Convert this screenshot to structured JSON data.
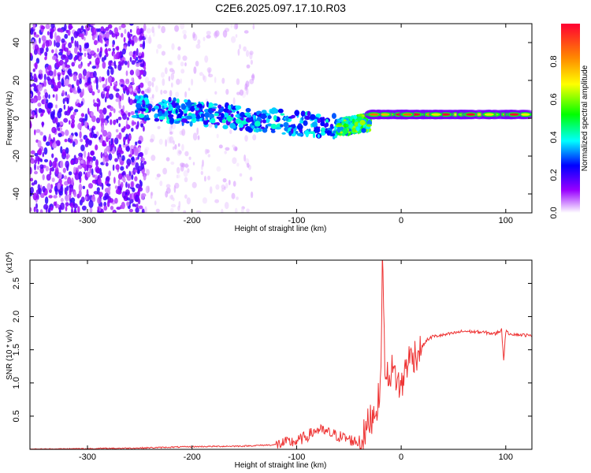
{
  "figure": {
    "title": "C2E6.2025.097.17.10.R03"
  },
  "chart_data": [
    {
      "type": "heatmap",
      "title": "C2E6.2025.097.17.10.R03",
      "xlabel": "Height of straight line (km)",
      "ylabel": "Frequency (Hz)",
      "xlim": [
        -355,
        125
      ],
      "ylim": [
        -50,
        50
      ],
      "xticks": [
        -300,
        -200,
        -100,
        0,
        100
      ],
      "yticks": [
        -40,
        -20,
        0,
        20,
        40
      ],
      "colorbar": {
        "label": "Normalized spectral amplitude",
        "range": [
          0.0,
          1.0
        ],
        "ticks": [
          0.0,
          0.2,
          0.4,
          0.6,
          0.8
        ],
        "colormap": [
          "#ffffff",
          "#9900ff",
          "#0000ff",
          "#00ffff",
          "#00ff00",
          "#ffff00",
          "#ff8800",
          "#ff0033"
        ]
      },
      "regions": [
        {
          "x": [
            -355,
            -245
          ],
          "freq": [
            -50,
            50
          ],
          "amplitude": 0.12
        },
        {
          "x": [
            -245,
            -140
          ],
          "freq": [
            -50,
            50
          ],
          "amplitude": 0.03
        },
        {
          "x": [
            -255,
            -60
          ],
          "freq_center": [
            6,
            -5
          ],
          "freq_halfwidth": 6,
          "amplitude": 0.3
        },
        {
          "x": [
            -60,
            -30
          ],
          "freq_center": [
            -5,
            -2
          ],
          "freq_halfwidth": 4,
          "amplitude": 0.45
        },
        {
          "x": [
            -30,
            125
          ],
          "freq_center": [
            2,
            2
          ],
          "freq_halfwidth": 2,
          "amplitude": 0.95
        }
      ]
    },
    {
      "type": "line",
      "xlabel": "Height of straight line (km)",
      "ylabel": "SNR (10 * v/v)",
      "y_scale_note": "(x10^4)",
      "xlim": [
        -355,
        125
      ],
      "ylim": [
        0,
        2.85
      ],
      "xticks": [
        -300,
        -200,
        -100,
        0,
        100
      ],
      "yticks": [
        0.5,
        1.0,
        1.5,
        2.0,
        2.5
      ],
      "grid": false,
      "series": [
        {
          "color": "#ee3333",
          "x": [
            -355,
            -300,
            -250,
            -200,
            -150,
            -120,
            -110,
            -100,
            -90,
            -80,
            -70,
            -60,
            -50,
            -40,
            -35,
            -30,
            -25,
            -20,
            -18,
            -15,
            -10,
            -5,
            0,
            5,
            10,
            15,
            20,
            25,
            30,
            40,
            50,
            60,
            70,
            80,
            90,
            96,
            98,
            100,
            102,
            110,
            120,
            125
          ],
          "values": [
            0.0,
            0.01,
            0.02,
            0.04,
            0.05,
            0.07,
            0.1,
            0.12,
            0.2,
            0.3,
            0.25,
            0.2,
            0.15,
            0.1,
            0.2,
            0.45,
            0.6,
            0.8,
            2.85,
            1.0,
            1.2,
            1.1,
            0.9,
            1.3,
            1.4,
            1.45,
            1.55,
            1.65,
            1.7,
            1.72,
            1.75,
            1.78,
            1.77,
            1.76,
            1.74,
            1.8,
            1.35,
            1.78,
            1.75,
            1.73,
            1.72,
            1.7
          ]
        }
      ]
    }
  ]
}
